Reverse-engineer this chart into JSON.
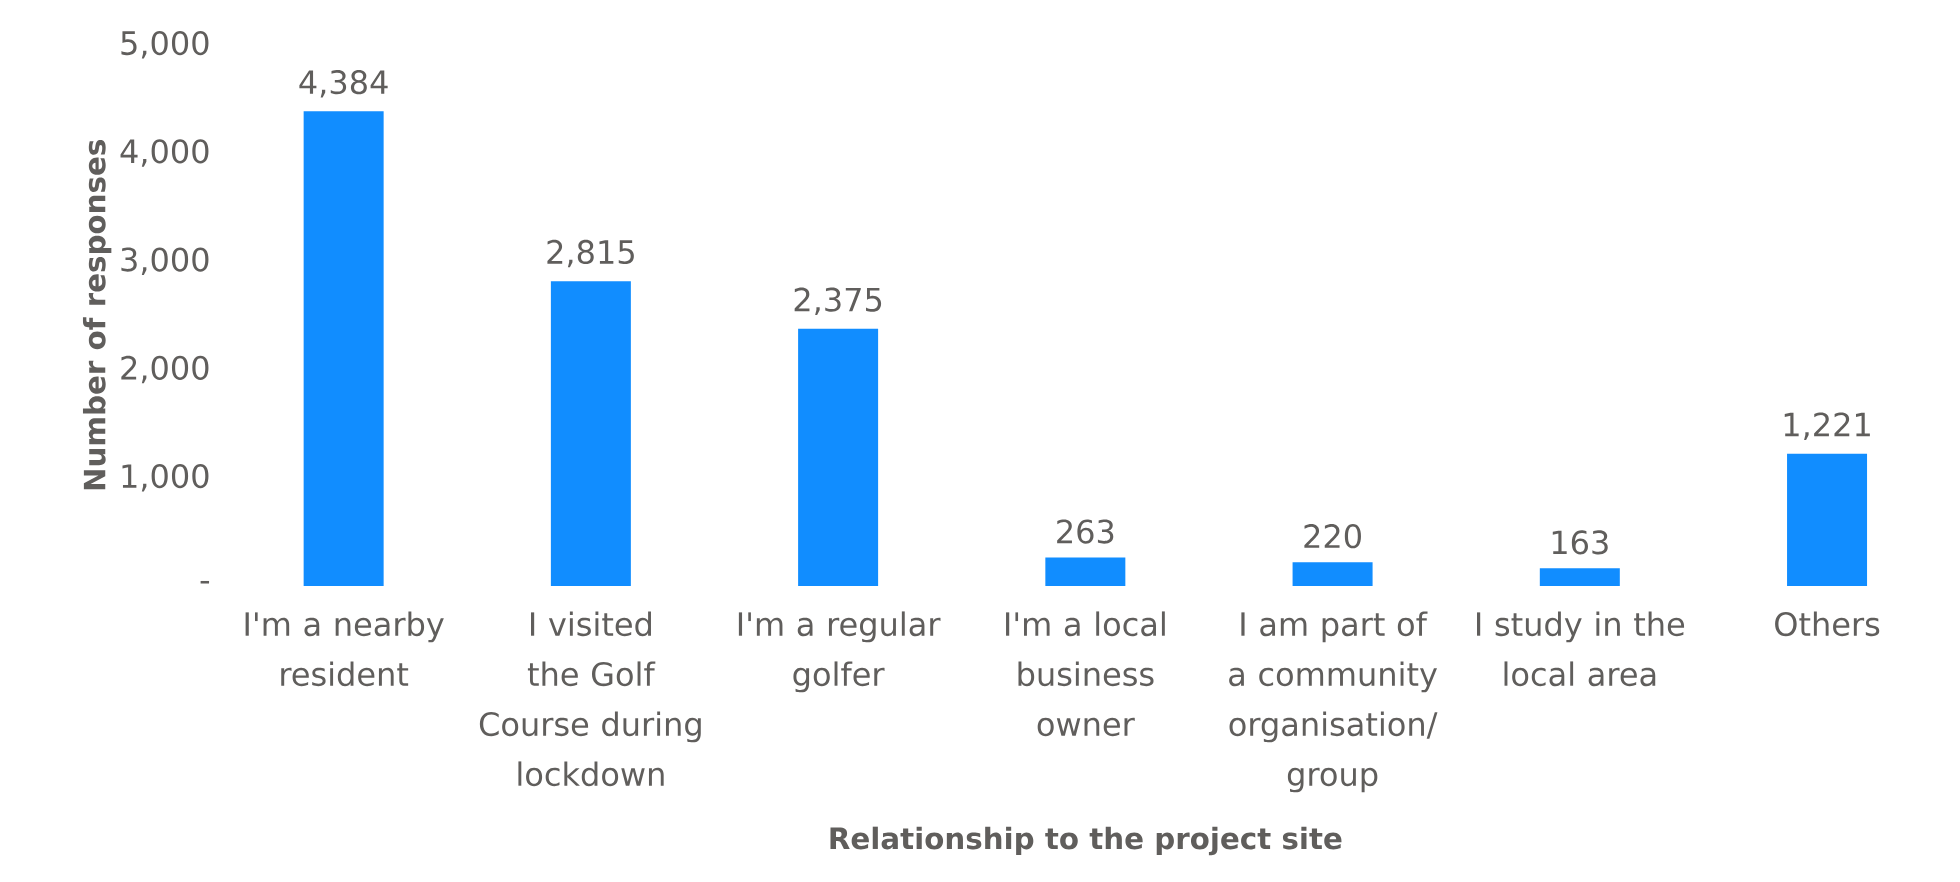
{
  "chart_data": {
    "type": "bar",
    "xlabel": "Relationship to the project site",
    "ylabel": "Number of responses",
    "categories": [
      "I'm a nearby resident",
      "I visited the Golf Course during lockdown",
      "I'm a regular golfer",
      "I'm a local business owner",
      "I am part of a community organisation/ group",
      "I study in the local area",
      "Others"
    ],
    "values": [
      4384,
      2815,
      2375,
      263,
      220,
      163,
      1221
    ],
    "value_labels": [
      "4,384",
      "2,815",
      "2,375",
      "263",
      "220",
      "163",
      "1,221"
    ],
    "color": "#118dff",
    "ylim": [
      0,
      5000
    ],
    "yticks": [
      {
        "value": 0,
        "label": "-"
      },
      {
        "value": 1000,
        "label": "1,000"
      },
      {
        "value": 2000,
        "label": "2,000"
      },
      {
        "value": 3000,
        "label": "3,000"
      },
      {
        "value": 4000,
        "label": "4,000"
      },
      {
        "value": 5000,
        "label": "5,000"
      }
    ],
    "grid": false
  }
}
